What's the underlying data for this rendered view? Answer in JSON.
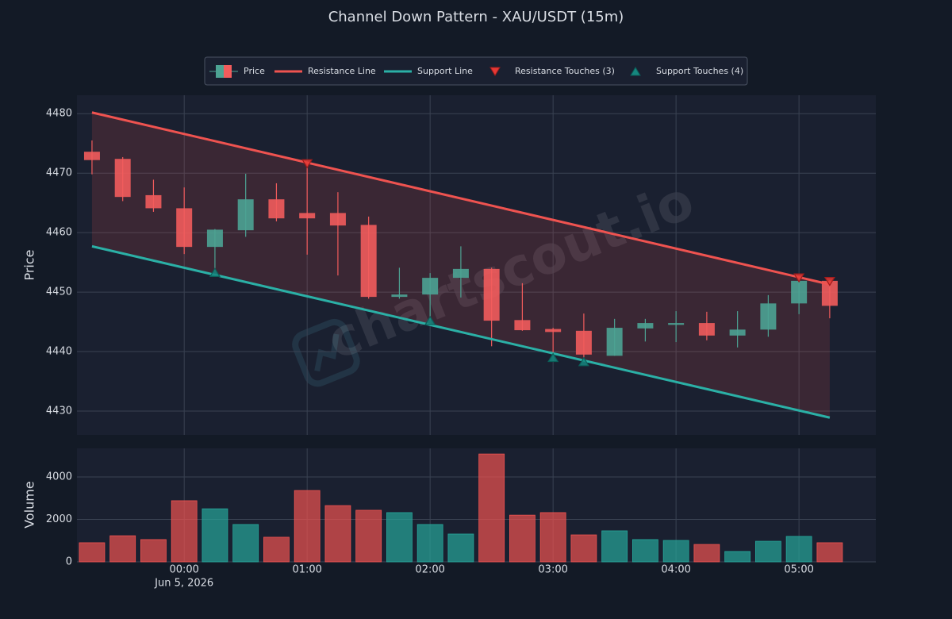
{
  "chart_data": [
    {
      "type": "candlestick",
      "title": "Channel Down Pattern - XAU/USDT (15m)",
      "watermark": "chartscout.io",
      "name": "Price",
      "ylabel": "Price",
      "x_date_label": "Jun 5, 2026",
      "x": [
        "2026-06-04T23:15",
        "2026-06-04T23:30",
        "2026-06-04T23:45",
        "2026-06-05T00:00",
        "2026-06-05T00:15",
        "2026-06-05T00:30",
        "2026-06-05T00:45",
        "2026-06-05T01:00",
        "2026-06-05T01:15",
        "2026-06-05T01:30",
        "2026-06-05T01:45",
        "2026-06-05T02:00",
        "2026-06-05T02:15",
        "2026-06-05T02:30",
        "2026-06-05T02:45",
        "2026-06-05T03:00",
        "2026-06-05T03:15",
        "2026-06-05T03:30",
        "2026-06-05T03:45",
        "2026-06-05T04:00",
        "2026-06-05T04:15",
        "2026-06-05T04:30",
        "2026-06-05T04:45",
        "2026-06-05T05:00",
        "2026-06-05T05:15"
      ],
      "open": [
        4473.6,
        4472.4,
        4466.3,
        4464.1,
        4457.6,
        4460.4,
        4465.6,
        4463.3,
        4463.3,
        4461.3,
        4449.2,
        4449.6,
        4452.4,
        4453.9,
        4445.3,
        4443.8,
        4443.5,
        4439.3,
        4443.9,
        4444.5,
        4444.8,
        4442.7,
        4443.7,
        4448.1,
        4451.9
      ],
      "high": [
        4475.5,
        4472.7,
        4468.9,
        4467.6,
        4460.6,
        4469.9,
        4468.3,
        4471.7,
        4466.8,
        4462.7,
        4454.1,
        4453.2,
        4457.7,
        4454.1,
        4451.5,
        4444.0,
        4446.4,
        4445.5,
        4445.5,
        4446.8,
        4446.7,
        4446.8,
        4449.5,
        4452.5,
        4452.0
      ],
      "low": [
        4469.8,
        4465.3,
        4463.5,
        4456.4,
        4453.6,
        4459.3,
        4461.9,
        4456.3,
        4452.8,
        4448.9,
        4448.9,
        4445.3,
        4449.1,
        4440.9,
        4443.5,
        4439.5,
        4438.8,
        4439.3,
        4441.7,
        4441.6,
        4441.9,
        4440.7,
        4442.5,
        4446.3,
        4445.6
      ],
      "close": [
        4472.2,
        4466.0,
        4464.1,
        4457.6,
        4460.5,
        4465.6,
        4462.4,
        4462.4,
        4461.2,
        4449.2,
        4449.6,
        4452.4,
        4453.9,
        4445.2,
        4443.6,
        4443.3,
        4439.5,
        4444.0,
        4444.8,
        4444.8,
        4442.7,
        4443.7,
        4448.1,
        4451.9,
        4447.7
      ],
      "up_color": "#4da393",
      "down_color": "#f25c5c",
      "series": [
        {
          "name": "Resistance Line",
          "kind": "line",
          "color": "#ef5350",
          "x": [
            "2026-06-04T23:15",
            "2026-06-05T05:15"
          ],
          "values": [
            4480.2,
            4451.3
          ]
        },
        {
          "name": "Support Line",
          "kind": "line",
          "color": "#2bb0a6",
          "x": [
            "2026-06-04T23:15",
            "2026-06-05T05:15"
          ],
          "values": [
            4457.7,
            4428.9
          ]
        },
        {
          "name": "Resistance Touches (3)",
          "kind": "touch-down",
          "color": "#e53935",
          "x": [
            "2026-06-05T01:00",
            "2026-06-05T05:00",
            "2026-06-05T05:15"
          ],
          "values": [
            4471.6,
            4452.4,
            4451.8
          ]
        },
        {
          "name": "Support Touches (4)",
          "kind": "touch-up",
          "color": "#16877f",
          "x": [
            "2026-06-05T00:15",
            "2026-06-05T02:00",
            "2026-06-05T03:00",
            "2026-06-05T03:15"
          ],
          "values": [
            4453.3,
            4445.2,
            4439.0,
            4438.3
          ]
        }
      ],
      "channel_color": "#ef5350",
      "xlim": [
        "2026-06-04T23:07:40",
        "2026-06-05T05:37:30"
      ],
      "xticks": [
        {
          "value": "2026-06-05T00:00",
          "label": "00:00"
        },
        {
          "value": "2026-06-05T01:00",
          "label": "01:00"
        },
        {
          "value": "2026-06-05T02:00",
          "label": "02:00"
        },
        {
          "value": "2026-06-05T03:00",
          "label": "03:00"
        },
        {
          "value": "2026-06-05T04:00",
          "label": "04:00"
        },
        {
          "value": "2026-06-05T05:00",
          "label": "05:00"
        }
      ],
      "ylim": [
        4426.0,
        4483.1
      ],
      "yticks": [
        4430,
        4440,
        4450,
        4460,
        4470,
        4480
      ],
      "grid": true
    },
    {
      "type": "bar",
      "ylabel": "Volume",
      "values": [
        900,
        1230,
        1050,
        2880,
        2500,
        1760,
        1160,
        3360,
        2650,
        2430,
        2320,
        1760,
        1310,
        5080,
        2200,
        2320,
        1270,
        1460,
        1050,
        1010,
        820,
        490,
        970,
        1200,
        900
      ],
      "up_color": "#26a69a",
      "down_color": "#ef5350",
      "ylim": [
        0,
        5345
      ],
      "yticks": [
        0,
        2000,
        4000
      ],
      "grid": true
    }
  ]
}
